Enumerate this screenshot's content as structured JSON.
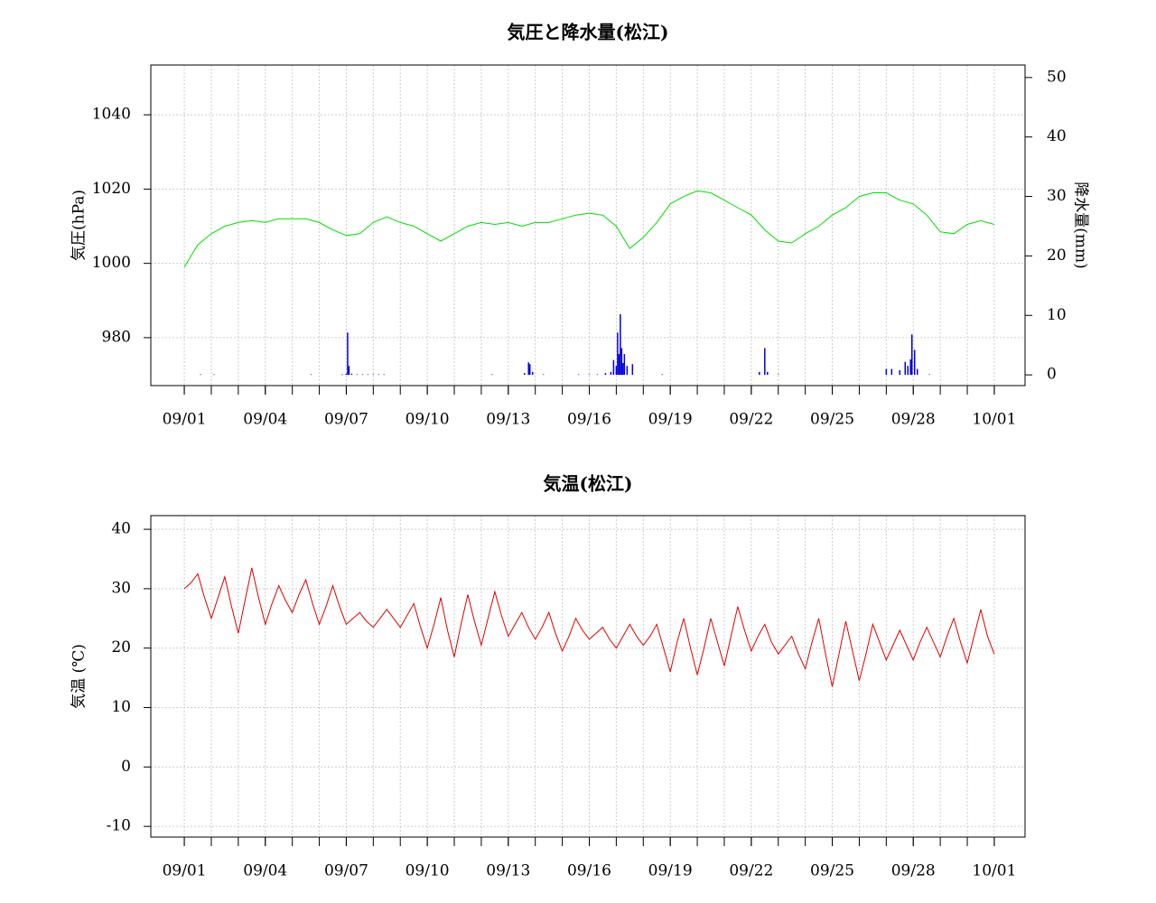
{
  "chart_data": [
    {
      "type": "line",
      "title": "気圧と降水量(松江)",
      "ylabel": "気圧(hPa)",
      "y2label": "降水量(mm)",
      "xlim": [
        -1.24,
        31.14
      ],
      "ylim": [
        967.1,
        1053.4
      ],
      "y2lim": [
        -1.8,
        52.1
      ],
      "yticks": [
        980,
        1000,
        1020,
        1040
      ],
      "y2ticks": [
        0,
        10,
        20,
        30,
        40,
        50
      ],
      "xticks": [
        {
          "value": 0,
          "label": "09/01"
        },
        {
          "value": 3,
          "label": "09/04"
        },
        {
          "value": 6,
          "label": "09/07"
        },
        {
          "value": 9,
          "label": "09/10"
        },
        {
          "value": 12,
          "label": "09/13"
        },
        {
          "value": 15,
          "label": "09/16"
        },
        {
          "value": 18,
          "label": "09/19"
        },
        {
          "value": 21,
          "label": "09/22"
        },
        {
          "value": 24,
          "label": "09/25"
        },
        {
          "value": 27,
          "label": "09/28"
        },
        {
          "value": 30,
          "label": "10/01"
        }
      ],
      "xminorticks": [
        0,
        1,
        2,
        3,
        4,
        5,
        6,
        7,
        8,
        9,
        10,
        11,
        12,
        13,
        14,
        15,
        16,
        17,
        18,
        19,
        20,
        21,
        22,
        23,
        24,
        25,
        26,
        27,
        28,
        29,
        30
      ],
      "grid": true,
      "series": [
        {
          "type": "line",
          "color": "#00dd00",
          "x": [
            0,
            0.5,
            1,
            1.5,
            2,
            2.5,
            3,
            3.5,
            4,
            4.5,
            5,
            5.5,
            6,
            6.5,
            7,
            7.5,
            8,
            8.5,
            9,
            9.5,
            10,
            10.5,
            11,
            11.5,
            12,
            12.5,
            13,
            13.5,
            14,
            14.5,
            15,
            15.5,
            16,
            16.5,
            17,
            17.5,
            18,
            18.5,
            19,
            19.5,
            20,
            20.5,
            21,
            21.5,
            22,
            22.5,
            23,
            23.5,
            24,
            24.5,
            25,
            25.5,
            26,
            26.5,
            27,
            27.5,
            28,
            28.5,
            29,
            29.5,
            30
          ],
          "values": [
            999,
            1005,
            1008,
            1010,
            1011,
            1011.5,
            1011,
            1012,
            1012,
            1012,
            1011,
            1009,
            1007.5,
            1008,
            1011,
            1012.5,
            1011,
            1010,
            1008,
            1006,
            1008,
            1010,
            1011,
            1010.5,
            1011,
            1010,
            1011,
            1011,
            1012,
            1013,
            1013.5,
            1013,
            1010,
            1004,
            1007,
            1011,
            1016,
            1018,
            1019.5,
            1019,
            1017,
            1015,
            1013,
            1009,
            1006,
            1005.5,
            1008,
            1010,
            1013,
            1015,
            1018,
            1019,
            1019,
            1017,
            1016,
            1013,
            1008.5,
            1008,
            1010.5,
            1011.5,
            1010.5
          ]
        },
        {
          "type": "bar",
          "axis": "y2",
          "color": "#0000dd",
          "x": [
            0.6,
            1.1,
            4.7,
            5.85,
            6.0,
            6.05,
            6.1,
            6.2,
            6.4,
            6.6,
            6.8,
            7.0,
            7.2,
            7.4,
            11.4,
            12.6,
            12.75,
            12.8,
            12.9,
            13.3,
            14.6,
            15.0,
            15.3,
            15.6,
            15.8,
            15.9,
            16.0,
            16.05,
            16.1,
            16.15,
            16.2,
            16.25,
            16.3,
            16.4,
            16.6,
            17.7,
            21.3,
            21.5,
            21.6,
            22.0,
            26.0,
            26.2,
            26.5,
            26.7,
            26.8,
            26.9,
            26.95,
            27.05,
            27.15,
            27.6
          ],
          "values": [
            0.1,
            0.1,
            0.1,
            0.1,
            0.2,
            7.1,
            1.5,
            0.2,
            0.1,
            0.1,
            0.1,
            0.1,
            0.1,
            0.1,
            0.1,
            0.3,
            2.1,
            1.8,
            0.5,
            0.1,
            0.1,
            0.1,
            0.1,
            0.3,
            0.5,
            2.5,
            1.5,
            7.1,
            3.5,
            10.2,
            4.5,
            2.0,
            3.5,
            1.5,
            1.8,
            0.1,
            0.5,
            4.5,
            0.5,
            0.1,
            1.0,
            1.0,
            0.8,
            2.2,
            1.5,
            2.6,
            6.8,
            4.2,
            1.0,
            0.1
          ]
        }
      ]
    },
    {
      "type": "line",
      "title": "気温(松江)",
      "ylabel": "気温 (℃)",
      "xlim": [
        -1.24,
        31.14
      ],
      "ylim": [
        -11.8,
        42.3
      ],
      "yticks": [
        -10,
        0,
        10,
        20,
        30,
        40
      ],
      "xticks": [
        {
          "value": 0,
          "label": "09/01"
        },
        {
          "value": 3,
          "label": "09/04"
        },
        {
          "value": 6,
          "label": "09/07"
        },
        {
          "value": 9,
          "label": "09/10"
        },
        {
          "value": 12,
          "label": "09/13"
        },
        {
          "value": 15,
          "label": "09/16"
        },
        {
          "value": 18,
          "label": "09/19"
        },
        {
          "value": 21,
          "label": "09/22"
        },
        {
          "value": 24,
          "label": "09/25"
        },
        {
          "value": 27,
          "label": "09/28"
        },
        {
          "value": 30,
          "label": "10/01"
        }
      ],
      "xminorticks": [
        0,
        1,
        2,
        3,
        4,
        5,
        6,
        7,
        8,
        9,
        10,
        11,
        12,
        13,
        14,
        15,
        16,
        17,
        18,
        19,
        20,
        21,
        22,
        23,
        24,
        25,
        26,
        27,
        28,
        29,
        30
      ],
      "grid": true,
      "series": [
        {
          "type": "line",
          "color": "#dd0000",
          "x": [
            0,
            0.25,
            0.5,
            0.75,
            1,
            1.25,
            1.5,
            1.75,
            2,
            2.25,
            2.5,
            2.75,
            3,
            3.25,
            3.5,
            3.75,
            4,
            4.25,
            4.5,
            4.75,
            5,
            5.25,
            5.5,
            5.75,
            6,
            6.25,
            6.5,
            6.75,
            7,
            7.25,
            7.5,
            7.75,
            8,
            8.25,
            8.5,
            8.75,
            9,
            9.25,
            9.5,
            9.75,
            10,
            10.25,
            10.5,
            10.75,
            11,
            11.25,
            11.5,
            11.75,
            12,
            12.25,
            12.5,
            12.75,
            13,
            13.25,
            13.5,
            13.75,
            14,
            14.25,
            14.5,
            14.75,
            15,
            15.25,
            15.5,
            15.75,
            16,
            16.25,
            16.5,
            16.75,
            17,
            17.25,
            17.5,
            17.75,
            18,
            18.25,
            18.5,
            18.75,
            19,
            19.25,
            19.5,
            19.75,
            20,
            20.25,
            20.5,
            20.75,
            21,
            21.25,
            21.5,
            21.75,
            22,
            22.25,
            22.5,
            22.75,
            23,
            23.25,
            23.5,
            23.75,
            24,
            24.25,
            24.5,
            24.75,
            25,
            25.25,
            25.5,
            25.75,
            26,
            26.25,
            26.5,
            26.75,
            27,
            27.25,
            27.5,
            27.75,
            28,
            28.25,
            28.5,
            28.75,
            29,
            29.25,
            29.5,
            29.75,
            30
          ],
          "values": [
            30,
            31,
            32.5,
            28.5,
            25,
            28.5,
            32,
            27,
            22.5,
            28,
            33.5,
            28.5,
            24,
            27.5,
            30.5,
            28,
            26,
            29,
            31.5,
            27.5,
            24,
            27,
            30.5,
            27,
            24,
            25,
            26,
            24.5,
            23.5,
            25,
            26.5,
            25,
            23.5,
            25.5,
            27.5,
            23.5,
            20,
            24,
            28.5,
            23,
            18.5,
            24,
            29,
            24.5,
            20.5,
            25,
            29.5,
            25.5,
            22,
            24,
            26,
            23.5,
            21.5,
            23.5,
            26,
            22.5,
            19.5,
            22,
            25,
            23,
            21.5,
            22.5,
            23.5,
            21.5,
            20,
            22,
            24,
            22,
            20.5,
            22,
            24,
            20,
            16,
            21,
            25,
            20,
            15.5,
            20,
            25,
            21,
            17,
            22,
            27,
            23,
            19.5,
            22,
            24,
            21,
            19,
            20.5,
            22,
            19,
            16.5,
            21,
            25,
            19,
            13.5,
            19,
            24.5,
            19.5,
            14.5,
            19,
            24,
            21,
            18,
            20.5,
            23,
            20.5,
            18,
            21,
            23.5,
            21,
            18.5,
            22,
            25,
            21,
            17.5,
            22,
            26.5,
            22,
            19
          ]
        }
      ]
    }
  ]
}
